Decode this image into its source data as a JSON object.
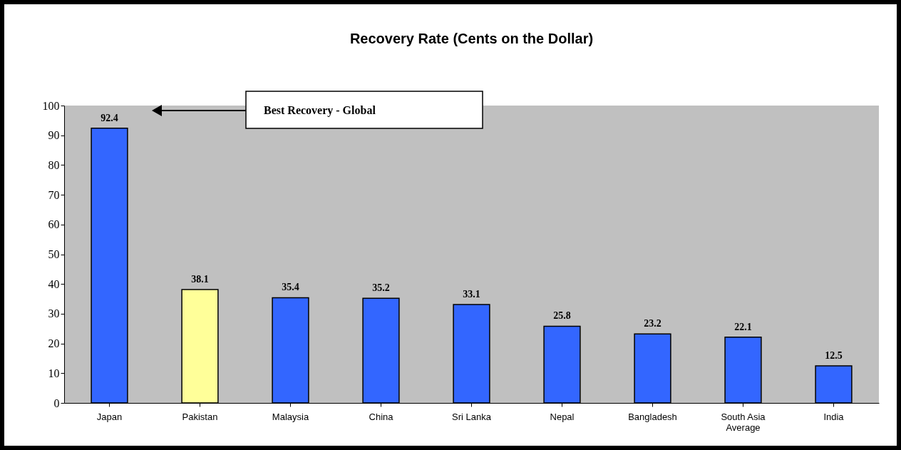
{
  "chart_data": {
    "type": "bar",
    "title": "Recovery Rate (Cents on the Dollar)",
    "categories": [
      "Japan",
      "Pakistan",
      "Malaysia",
      "China",
      "Sri Lanka",
      "Nepal",
      "Bangladesh",
      "South Asia Average",
      "India"
    ],
    "values": [
      92.4,
      38.1,
      35.4,
      35.2,
      33.1,
      25.8,
      23.2,
      22.1,
      12.5
    ],
    "colors": [
      "#3366ff",
      "#ffff99",
      "#3366ff",
      "#3366ff",
      "#3366ff",
      "#3366ff",
      "#3366ff",
      "#3366ff",
      "#3366ff"
    ],
    "ylim": [
      0,
      100
    ],
    "yticks": [
      0,
      10,
      20,
      30,
      40,
      50,
      60,
      70,
      80,
      90,
      100
    ],
    "grid": false,
    "data_labels": true,
    "annotations": [
      "Best Recovery  - Global"
    ]
  }
}
